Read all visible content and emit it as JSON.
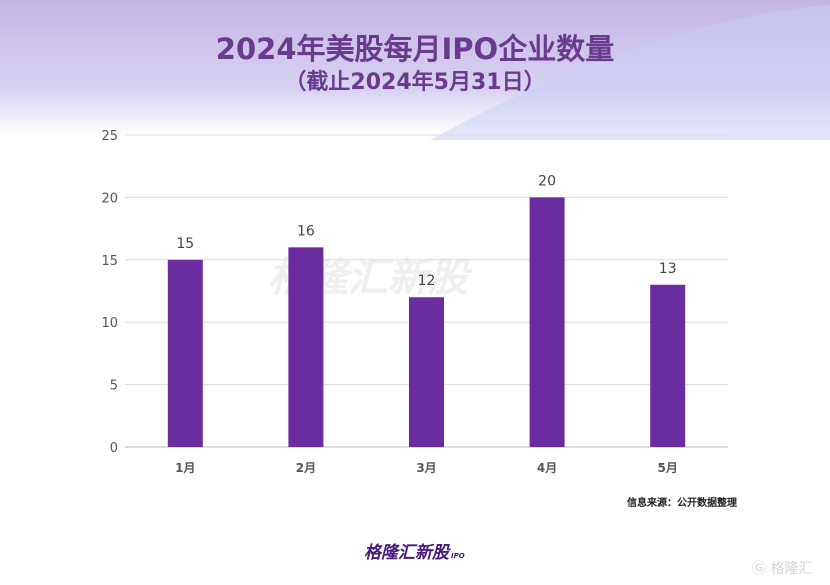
{
  "header": {
    "title": "2024年美股每月IPO企业数量",
    "subtitle": "（截止2024年5月31日）"
  },
  "chart_data": {
    "type": "bar",
    "categories": [
      "1月",
      "2月",
      "3月",
      "4月",
      "5月"
    ],
    "values": [
      15,
      16,
      12,
      20,
      13
    ],
    "ylim": [
      0,
      25
    ],
    "yticks": [
      0,
      5,
      10,
      15,
      20,
      25
    ],
    "grid": true,
    "bar_color": "#6a2c9e"
  },
  "footer": {
    "source": "信息来源：公开数据整理",
    "logo": "格隆汇新股",
    "logo_sub": "IPO",
    "watermark": "格隆汇"
  }
}
